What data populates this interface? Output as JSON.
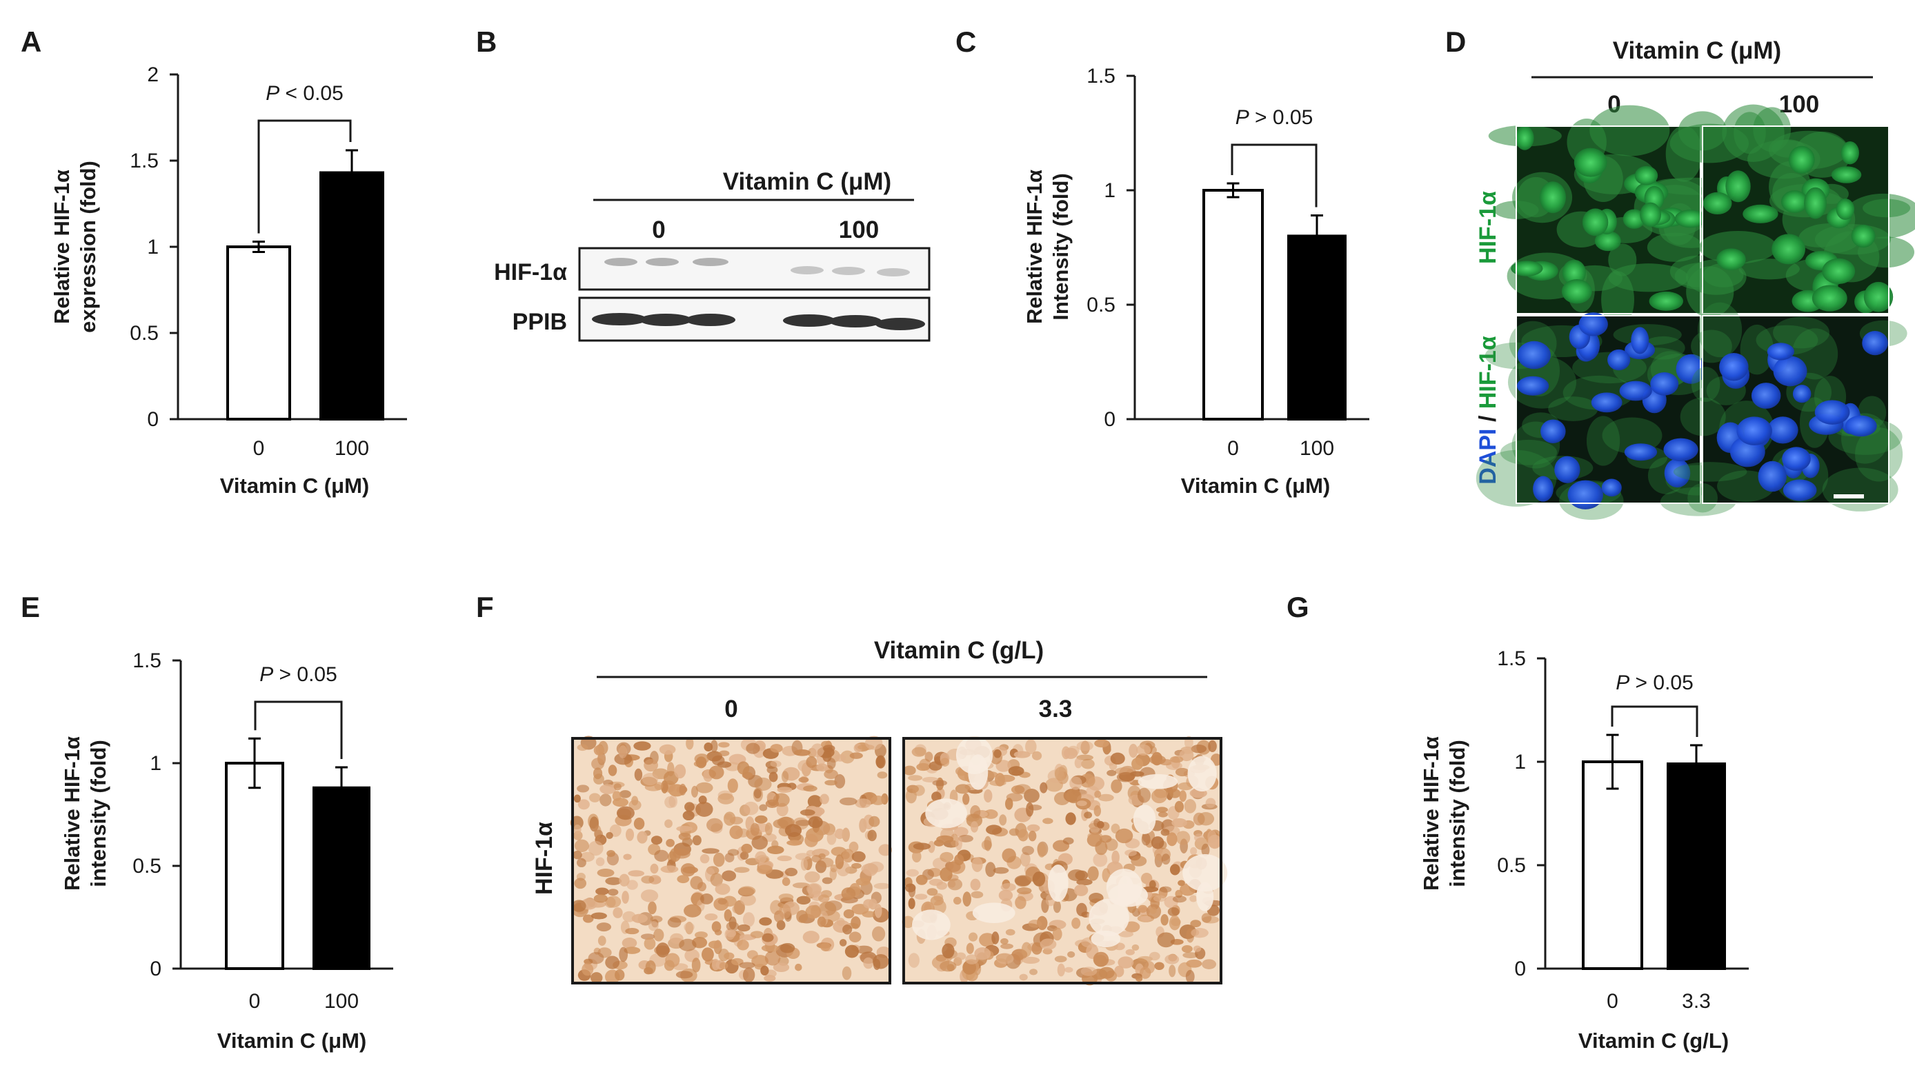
{
  "panels": {
    "a": "A",
    "b": "B",
    "c": "C",
    "d": "D",
    "e": "E",
    "f": "F",
    "g": "G"
  },
  "chart_data": [
    {
      "panel": "A",
      "type": "bar",
      "categories": [
        "0",
        "100"
      ],
      "values": [
        1.0,
        1.43
      ],
      "errors": [
        0.03,
        0.13
      ],
      "fills": [
        "#ffffff",
        "#000000"
      ],
      "ylabel_lines": [
        "Relative HIF-1α",
        "expression (fold)"
      ],
      "xlabel": "Vitamin C (μM)",
      "ylim": [
        0,
        2
      ],
      "yticks": [
        0,
        0.5,
        1,
        1.5,
        2
      ],
      "ytick_labels": [
        "0",
        "0.5",
        "1",
        "1.5",
        "2"
      ],
      "annotation": {
        "italic": "P",
        "rest": " < 0.05"
      }
    },
    {
      "panel": "C",
      "type": "bar",
      "categories": [
        "0",
        "100"
      ],
      "values": [
        1.0,
        0.8
      ],
      "errors": [
        0.03,
        0.09
      ],
      "fills": [
        "#ffffff",
        "#000000"
      ],
      "ylabel_lines": [
        "Relative HIF-1α",
        "Intensity (fold)"
      ],
      "xlabel": "Vitamin C (μM)",
      "ylim": [
        0,
        1.5
      ],
      "yticks": [
        0,
        0.5,
        1,
        1.5
      ],
      "ytick_labels": [
        "0",
        "0.5",
        "1",
        "1.5"
      ],
      "annotation": {
        "italic": "P",
        "rest": " > 0.05"
      }
    },
    {
      "panel": "E",
      "type": "bar",
      "categories": [
        "0",
        "100"
      ],
      "values": [
        1.0,
        0.88
      ],
      "errors": [
        0.12,
        0.1
      ],
      "fills": [
        "#ffffff",
        "#000000"
      ],
      "ylabel_lines": [
        "Relative HIF-1α",
        "intensity (fold)"
      ],
      "xlabel": "Vitamin C (μM)",
      "ylim": [
        0,
        1.5
      ],
      "yticks": [
        0,
        0.5,
        1,
        1.5
      ],
      "ytick_labels": [
        "0",
        "0.5",
        "1",
        "1.5"
      ],
      "annotation": {
        "italic": "P",
        "rest": " > 0.05"
      }
    },
    {
      "panel": "G",
      "type": "bar",
      "categories": [
        "0",
        "3.3"
      ],
      "values": [
        1.0,
        0.99
      ],
      "errors": [
        0.13,
        0.09
      ],
      "fills": [
        "#ffffff",
        "#000000"
      ],
      "ylabel_lines": [
        "Relative HIF-1α",
        "intensity (fold)"
      ],
      "xlabel": "Vitamin C (g/L)",
      "ylim": [
        0,
        1.5
      ],
      "yticks": [
        0,
        0.5,
        1,
        1.5
      ],
      "ytick_labels": [
        "0",
        "0.5",
        "1",
        "1.5"
      ],
      "annotation": {
        "italic": "P",
        "rest": " > 0.05"
      }
    }
  ],
  "western_blot": {
    "header": "Vitamin C (μM)",
    "groups": [
      "0",
      "100"
    ],
    "rows": [
      "HIF-1α",
      "PPIB"
    ]
  },
  "immunofluorescence": {
    "header": "Vitamin C (μM)",
    "groups": [
      "0",
      "100"
    ],
    "row1_label": "HIF-1α",
    "row2_label_a": "DAPI",
    "row2_label_sep": " / ",
    "row2_label_b": "HIF-1α",
    "colors": {
      "green": "#1a9a3a",
      "blue": "#1e4fd8"
    }
  },
  "ihc": {
    "header": "Vitamin C (g/L)",
    "groups": [
      "0",
      "3.3"
    ],
    "row_label": "HIF-1α",
    "colors": {
      "stain": "#c98a55",
      "background": "#f3dcc4"
    }
  }
}
